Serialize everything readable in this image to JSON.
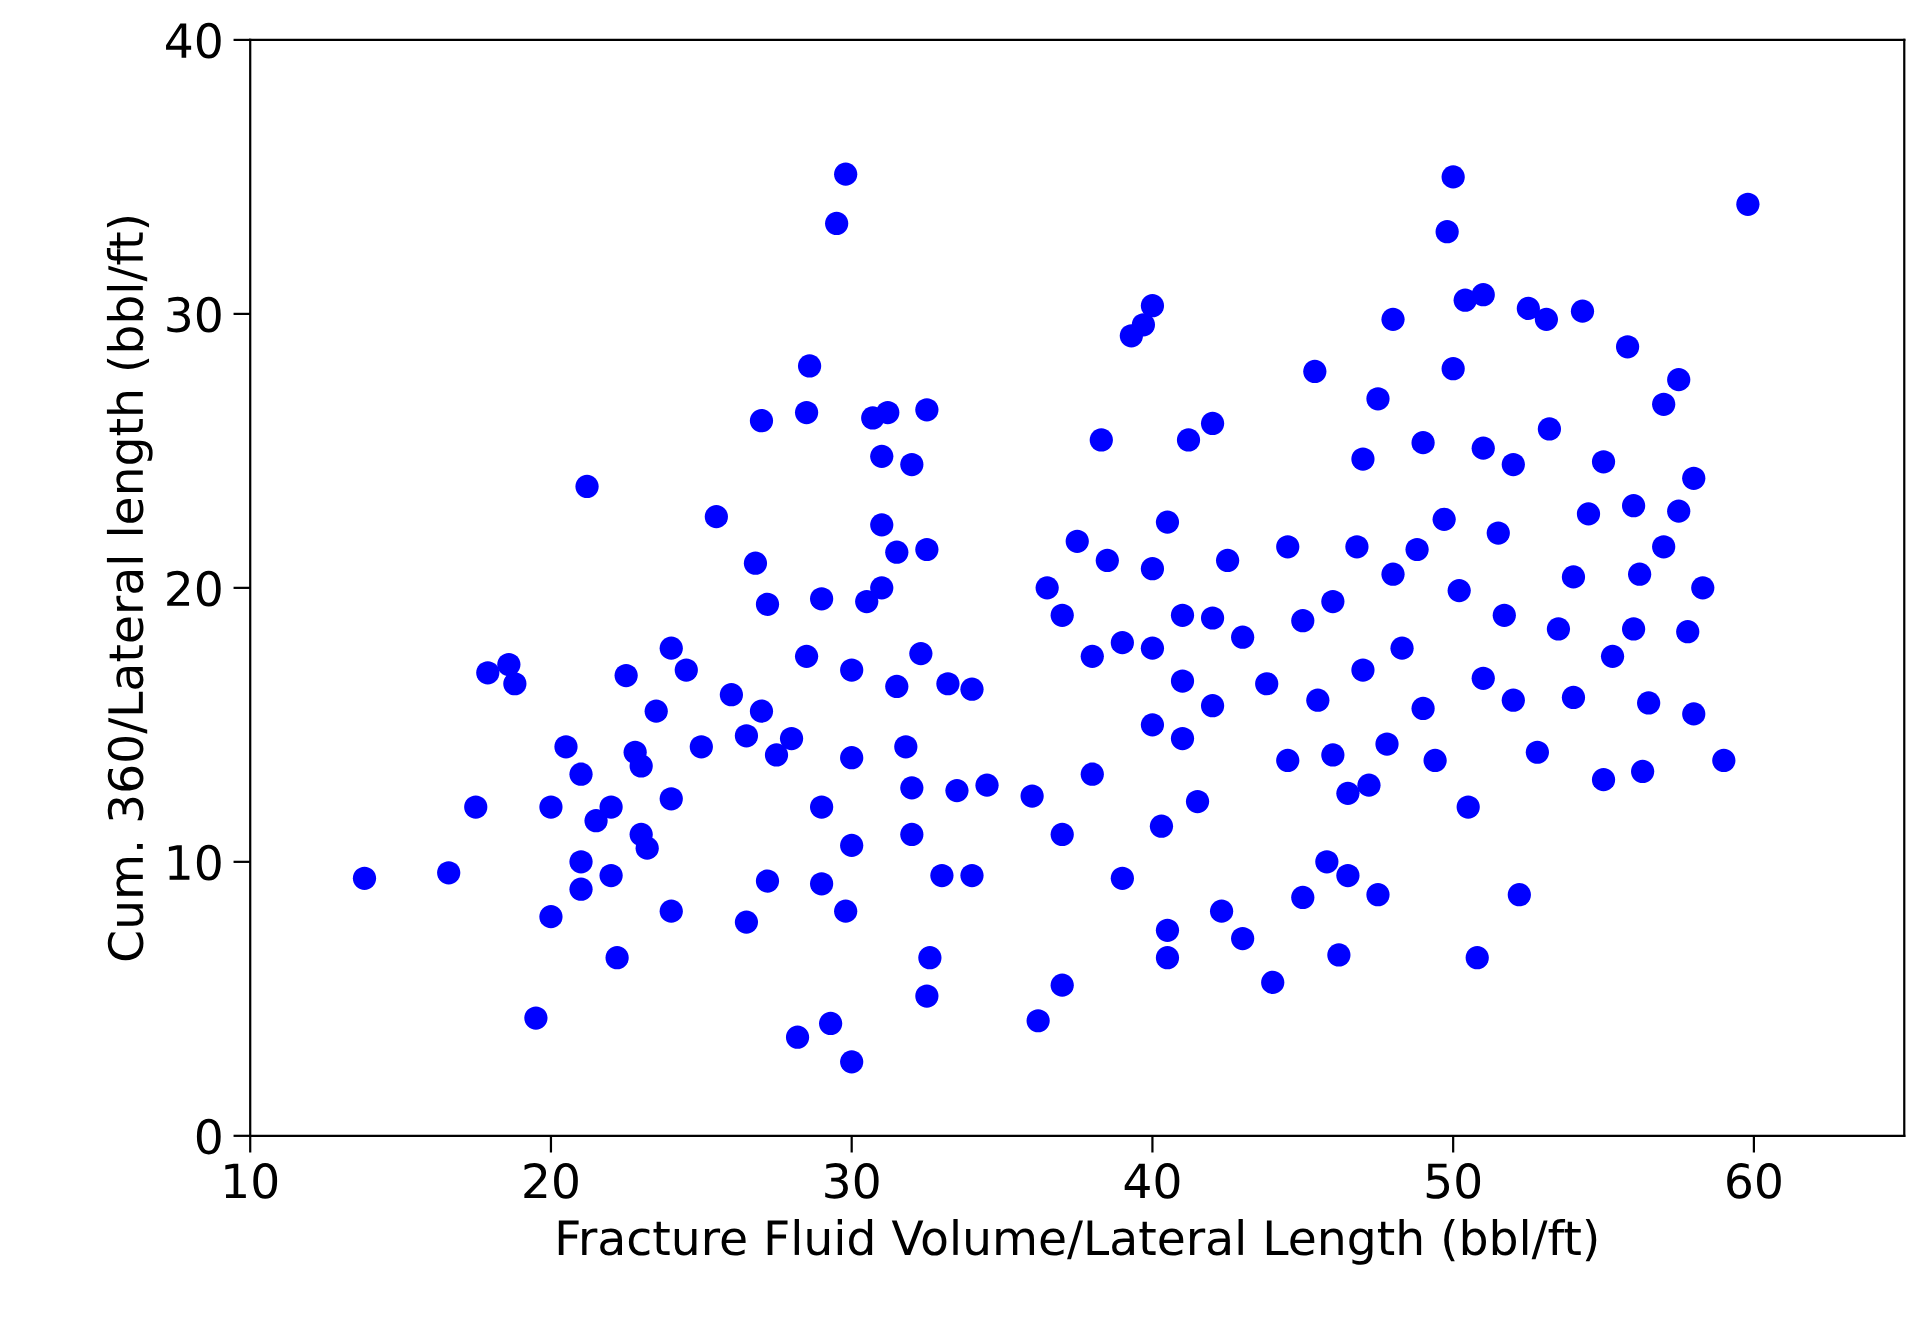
{
  "chart_data": {
    "type": "scatter",
    "xlabel": "Fracture Fluid Volume/Lateral Length (bbl/ft)",
    "ylabel": "Cum. 360/Lateral length (bbl/ft)",
    "xlim": [
      10,
      65
    ],
    "ylim": [
      0,
      40
    ],
    "xticks": [
      10,
      20,
      30,
      40,
      50,
      60
    ],
    "yticks": [
      0,
      10,
      20,
      30,
      40
    ],
    "grid": false,
    "marker": "circle",
    "series": [
      {
        "color": "#0000ff",
        "x": [
          13.8,
          16.6,
          17.5,
          17.9,
          18.6,
          18.8,
          19.5,
          20,
          20,
          20.5,
          21,
          21,
          21,
          21.2,
          21.5,
          22,
          22,
          22.2,
          22.5,
          22.8,
          23,
          23,
          23.2,
          23.5,
          24,
          24,
          24,
          24.5,
          25,
          25.5,
          26,
          26.5,
          26.5,
          26.8,
          27,
          27,
          27.2,
          27.5,
          27.2,
          28,
          28.2,
          28.5,
          28.5,
          28.6,
          29,
          29,
          29,
          29.3,
          29.5,
          29.8,
          29.8,
          30,
          30,
          30,
          30,
          30.5,
          30.7,
          31,
          31,
          31,
          31.2,
          31.5,
          31.5,
          31.8,
          32,
          32,
          32,
          32.5,
          32.5,
          32.3,
          32.6,
          32.5,
          33,
          33.5,
          33.2,
          34,
          34,
          34.5,
          36,
          36.2,
          36.5,
          37,
          37,
          37,
          37.5,
          38,
          38,
          38.3,
          38.5,
          39,
          39,
          39.3,
          39.7,
          40,
          40,
          40,
          40,
          40.3,
          40.5,
          40.5,
          40.5,
          41,
          41,
          41,
          41.2,
          41.5,
          42,
          42,
          42,
          42.3,
          42.5,
          43,
          43,
          43.8,
          44,
          44.5,
          44.5,
          45,
          45,
          45.4,
          45.5,
          45.8,
          46,
          46,
          46.5,
          46.5,
          46.2,
          46.8,
          47,
          47,
          47.2,
          47.5,
          47.5,
          47.8,
          48,
          48,
          48.3,
          48.8,
          49,
          49,
          49.4,
          49.7,
          49.8,
          50,
          50,
          50.2,
          50.4,
          50.5,
          50.8,
          51,
          51,
          51,
          51.5,
          51.7,
          52,
          52,
          52.2,
          52.5,
          52.8,
          53.1,
          53.2,
          53.5,
          54,
          54,
          54.3,
          54.5,
          55,
          55,
          55.3,
          55.8,
          56,
          56,
          56.2,
          56.3,
          56.5,
          57,
          57,
          57.5,
          57.5,
          57.8,
          58,
          58,
          58.3,
          59,
          59.8
        ],
        "values": [
          9.4,
          9.6,
          12.0,
          16.9,
          17.2,
          16.5,
          4.3,
          8,
          12,
          14.2,
          13.2,
          10,
          9,
          23.7,
          11.5,
          9.5,
          12,
          6.5,
          16.8,
          14,
          13.5,
          11,
          10.5,
          15.5,
          8.2,
          12.3,
          17.8,
          17,
          14.2,
          22.6,
          16.1,
          7.8,
          14.6,
          20.9,
          26.1,
          15.5,
          19.4,
          13.9,
          9.3,
          14.5,
          3.6,
          17.5,
          26.4,
          28.1,
          19.6,
          12,
          9.2,
          4.1,
          33.3,
          35.1,
          8.2,
          2.7,
          10.6,
          13.8,
          17,
          19.5,
          26.2,
          24.8,
          22.3,
          20,
          26.4,
          21.3,
          16.4,
          14.2,
          12.7,
          11,
          24.5,
          26.5,
          21.4,
          17.6,
          6.5,
          5.1,
          9.5,
          12.6,
          16.5,
          9.5,
          16.3,
          12.8,
          12.4,
          4.2,
          20,
          5.5,
          11,
          19,
          21.7,
          13.2,
          17.5,
          25.4,
          21,
          9.4,
          18,
          29.2,
          29.6,
          30.3,
          15,
          17.8,
          20.7,
          11.3,
          6.5,
          7.5,
          22.4,
          14.5,
          19,
          16.6,
          25.4,
          12.2,
          26,
          18.9,
          15.7,
          8.2,
          21,
          7.2,
          18.2,
          16.5,
          5.6,
          13.7,
          21.5,
          8.7,
          18.8,
          27.9,
          15.9,
          10,
          19.5,
          13.9,
          12.5,
          9.5,
          6.6,
          21.5,
          24.7,
          17,
          12.8,
          26.9,
          8.8,
          14.3,
          29.8,
          20.5,
          17.8,
          21.4,
          25.3,
          15.6,
          13.7,
          22.5,
          33,
          35,
          28,
          19.9,
          30.5,
          12,
          6.5,
          30.7,
          25.1,
          16.7,
          22,
          19,
          24.5,
          15.9,
          8.8,
          30.2,
          14,
          29.8,
          25.8,
          18.5,
          20.4,
          16,
          30.1,
          22.7,
          24.6,
          13,
          17.5,
          28.8,
          23,
          18.5,
          20.5,
          13.3,
          15.8,
          21.5,
          26.7,
          27.6,
          22.8,
          18.4,
          24,
          15.4,
          20,
          13.7,
          34
        ]
      }
    ]
  }
}
